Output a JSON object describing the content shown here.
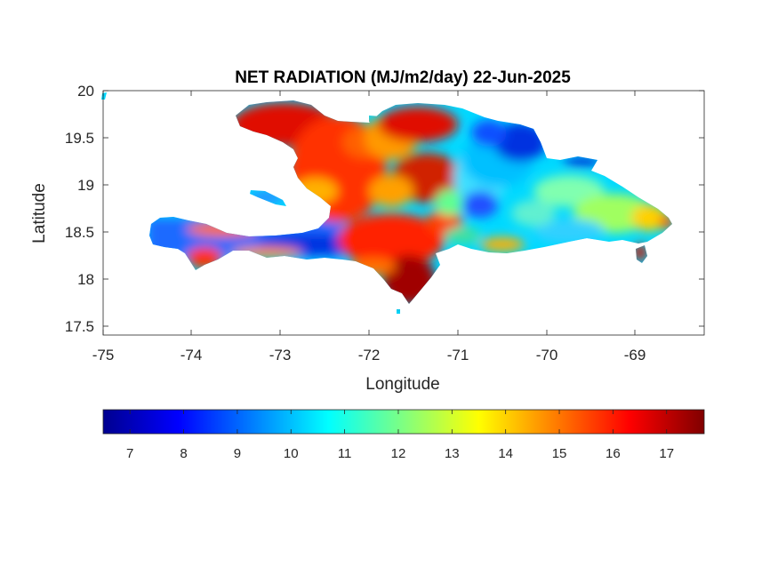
{
  "title": "NET RADIATION (MJ/m2/day) 22-Jun-2025",
  "xlabel": "Longitude",
  "ylabel": "Latitude",
  "x_ticks": [
    "-75",
    "-74",
    "-73",
    "-72",
    "-71",
    "-70",
    "-69"
  ],
  "y_ticks": [
    "20",
    "19.5",
    "19",
    "18.5",
    "18",
    "17.5"
  ],
  "colorbar": {
    "colormap": "jet",
    "range": [
      6.5,
      17.7
    ],
    "ticks": [
      "7",
      "8",
      "9",
      "10",
      "11",
      "12",
      "13",
      "14",
      "15",
      "16",
      "17"
    ]
  },
  "map": {
    "region": "Hispaniola",
    "lon_range": [
      -75,
      -68.22
    ],
    "lat_range": [
      17.41,
      20
    ],
    "variable_units": "MJ/m2/day",
    "regional_values": [
      {
        "region": "northwest peninsula",
        "value": 16.5
      },
      {
        "region": "southwest coast",
        "value": 17
      },
      {
        "region": "southern peninsula interior",
        "value": 8.5
      },
      {
        "region": "central highlands",
        "value": 10.5
      },
      {
        "region": "northeast",
        "value": 8
      },
      {
        "region": "east",
        "value": 11
      },
      {
        "region": "south-central coast",
        "value": 17.2
      }
    ]
  }
}
